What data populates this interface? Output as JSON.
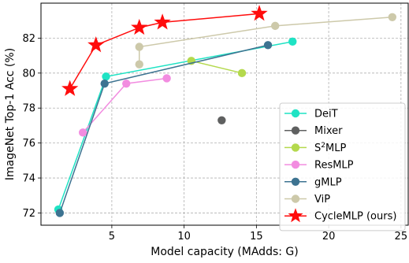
{
  "chart_data": {
    "type": "line",
    "xlabel": "Model capacity (MAdds: G)",
    "ylabel": "ImageNet Top-1 Acc (%)",
    "xlim": [
      0.1,
      25.5
    ],
    "ylim": [
      71.3,
      84.0
    ],
    "xticks": [
      5,
      10,
      15,
      20,
      25
    ],
    "yticks": [
      72,
      74,
      76,
      78,
      80,
      82
    ],
    "grid": "dashed",
    "legend_position": "lower-right",
    "series": [
      {
        "name": "DeiT",
        "color": "#1fe3c4",
        "marker": "circle",
        "x": [
          1.3,
          4.6,
          17.5
        ],
        "y": [
          72.2,
          79.8,
          81.8
        ]
      },
      {
        "name": "Mixer",
        "color": "#5f6060",
        "marker": "circle",
        "no_line": true,
        "x": [
          12.6
        ],
        "y": [
          77.3
        ]
      },
      {
        "name": "S²MLP",
        "legend_base": "S",
        "legend_sup": "2",
        "legend_rest": "MLP",
        "color": "#b4d94d",
        "marker": "circle",
        "x": [
          10.5,
          14.0
        ],
        "y": [
          80.7,
          80.0
        ]
      },
      {
        "name": "ResMLP",
        "color": "#f28ce0",
        "marker": "circle",
        "x": [
          3.0,
          6.0,
          8.8
        ],
        "y": [
          76.6,
          79.4,
          79.7
        ]
      },
      {
        "name": "gMLP",
        "color": "#3d7391",
        "marker": "circle",
        "x": [
          1.4,
          4.5,
          15.8
        ],
        "y": [
          72.0,
          79.4,
          81.6
        ]
      },
      {
        "name": "ViP",
        "color": "#cdc9aa",
        "marker": "circle",
        "x": [
          6.9,
          6.9,
          16.3,
          24.4
        ],
        "y": [
          80.5,
          81.5,
          82.7,
          83.2
        ]
      },
      {
        "name": "CycleMLP (ours)",
        "color": "#ff0c0c",
        "marker": "star",
        "x": [
          2.1,
          3.9,
          6.9,
          8.5,
          15.2
        ],
        "y": [
          79.1,
          81.6,
          82.6,
          82.9,
          83.4
        ]
      }
    ]
  }
}
